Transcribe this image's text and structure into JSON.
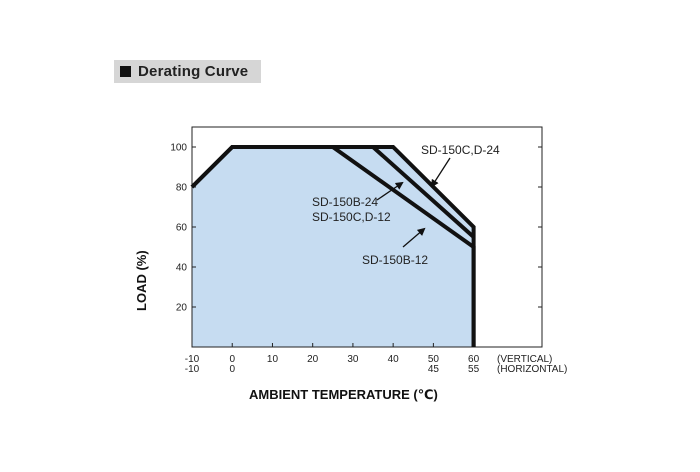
{
  "header": {
    "title": "Derating Curve"
  },
  "chart_data": {
    "type": "area",
    "xlabel": "AMBIENT TEMPERATURE (℃)",
    "ylabel": "LOAD (%)",
    "xlim": [
      -10,
      77
    ],
    "ylim": [
      0,
      110
    ],
    "x_ticks": [
      {
        "x": -10,
        "vertical": "-10",
        "horizontal": "-10"
      },
      {
        "x": 0,
        "vertical": "0",
        "horizontal": "0"
      },
      {
        "x": 10,
        "vertical": "10",
        "horizontal": ""
      },
      {
        "x": 20,
        "vertical": "20",
        "horizontal": ""
      },
      {
        "x": 30,
        "vertical": "30",
        "horizontal": ""
      },
      {
        "x": 40,
        "vertical": "40",
        "horizontal": ""
      },
      {
        "x": 50,
        "vertical": "50",
        "horizontal": "45"
      },
      {
        "x": 60,
        "vertical": "60",
        "horizontal": "55"
      }
    ],
    "x_row_labels": {
      "vertical": "(VERTICAL)",
      "horizontal": "(HORIZONTAL)"
    },
    "y_ticks": [
      "20",
      "40",
      "60",
      "80",
      "100"
    ],
    "series": [
      {
        "name": "SD-150C,D-24",
        "x": [
          -10,
          0,
          40,
          60,
          60
        ],
        "y": [
          80,
          100,
          100,
          60,
          0
        ]
      },
      {
        "name": "SD-150B-24 / SD-150C,D-12",
        "x": [
          35,
          60
        ],
        "y": [
          100,
          55
        ]
      },
      {
        "name": "SD-150B-12",
        "x": [
          -10,
          0,
          25,
          60,
          60
        ],
        "y": [
          80,
          100,
          100,
          50,
          0
        ]
      }
    ],
    "annotations": {
      "label_top": "SD-150C,D-24",
      "label_mid_1": "SD-150B-24",
      "label_mid_2": "SD-150C,D-12",
      "label_bottom": "SD-150B-12"
    },
    "fill_color": "#c6dcf1",
    "line_color": "#111111",
    "grid": "ticks-only"
  }
}
